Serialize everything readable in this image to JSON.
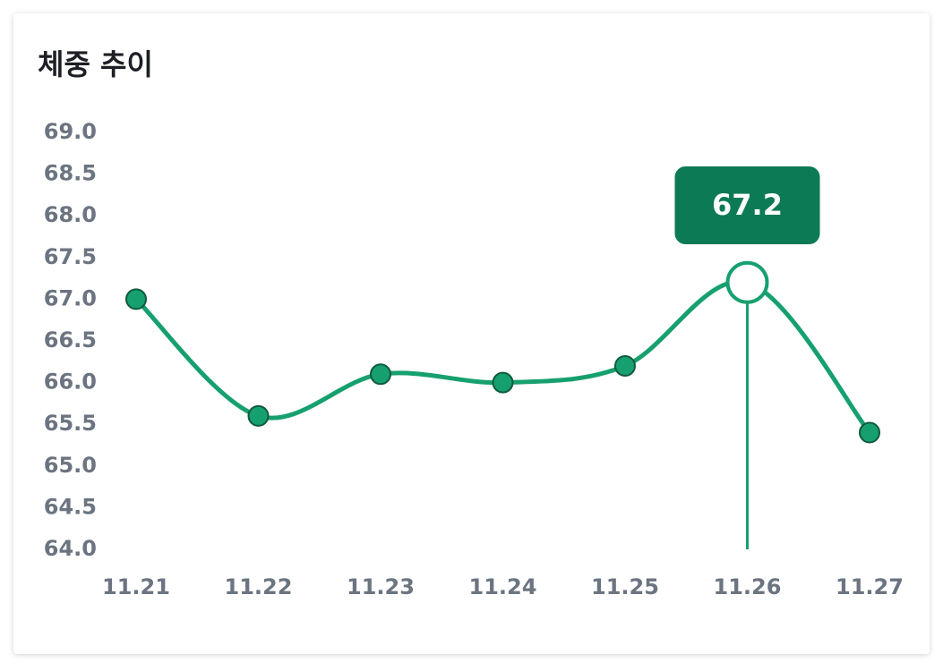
{
  "chart_data": {
    "type": "line",
    "title": "체중 추이",
    "categories": [
      "11.21",
      "11.22",
      "11.23",
      "11.24",
      "11.25",
      "11.26",
      "11.27"
    ],
    "values": [
      67.0,
      65.6,
      66.1,
      66.0,
      66.2,
      67.2,
      65.4
    ],
    "color": "#17a06f",
    "smooth": true,
    "highlight_index": 5,
    "ylim": [
      64.0,
      69.0
    ],
    "yticks": [
      {
        "value": 64,
        "label": "64.0"
      },
      64.5,
      {
        "value": 65,
        "label": "65.0"
      },
      65.5,
      {
        "value": 66,
        "label": "66.0"
      },
      66.5,
      {
        "value": 67,
        "label": "67.0"
      },
      67.5,
      {
        "value": 68,
        "label": "68.0"
      },
      68.5,
      {
        "value": 69,
        "label": "69.0"
      }
    ]
  }
}
